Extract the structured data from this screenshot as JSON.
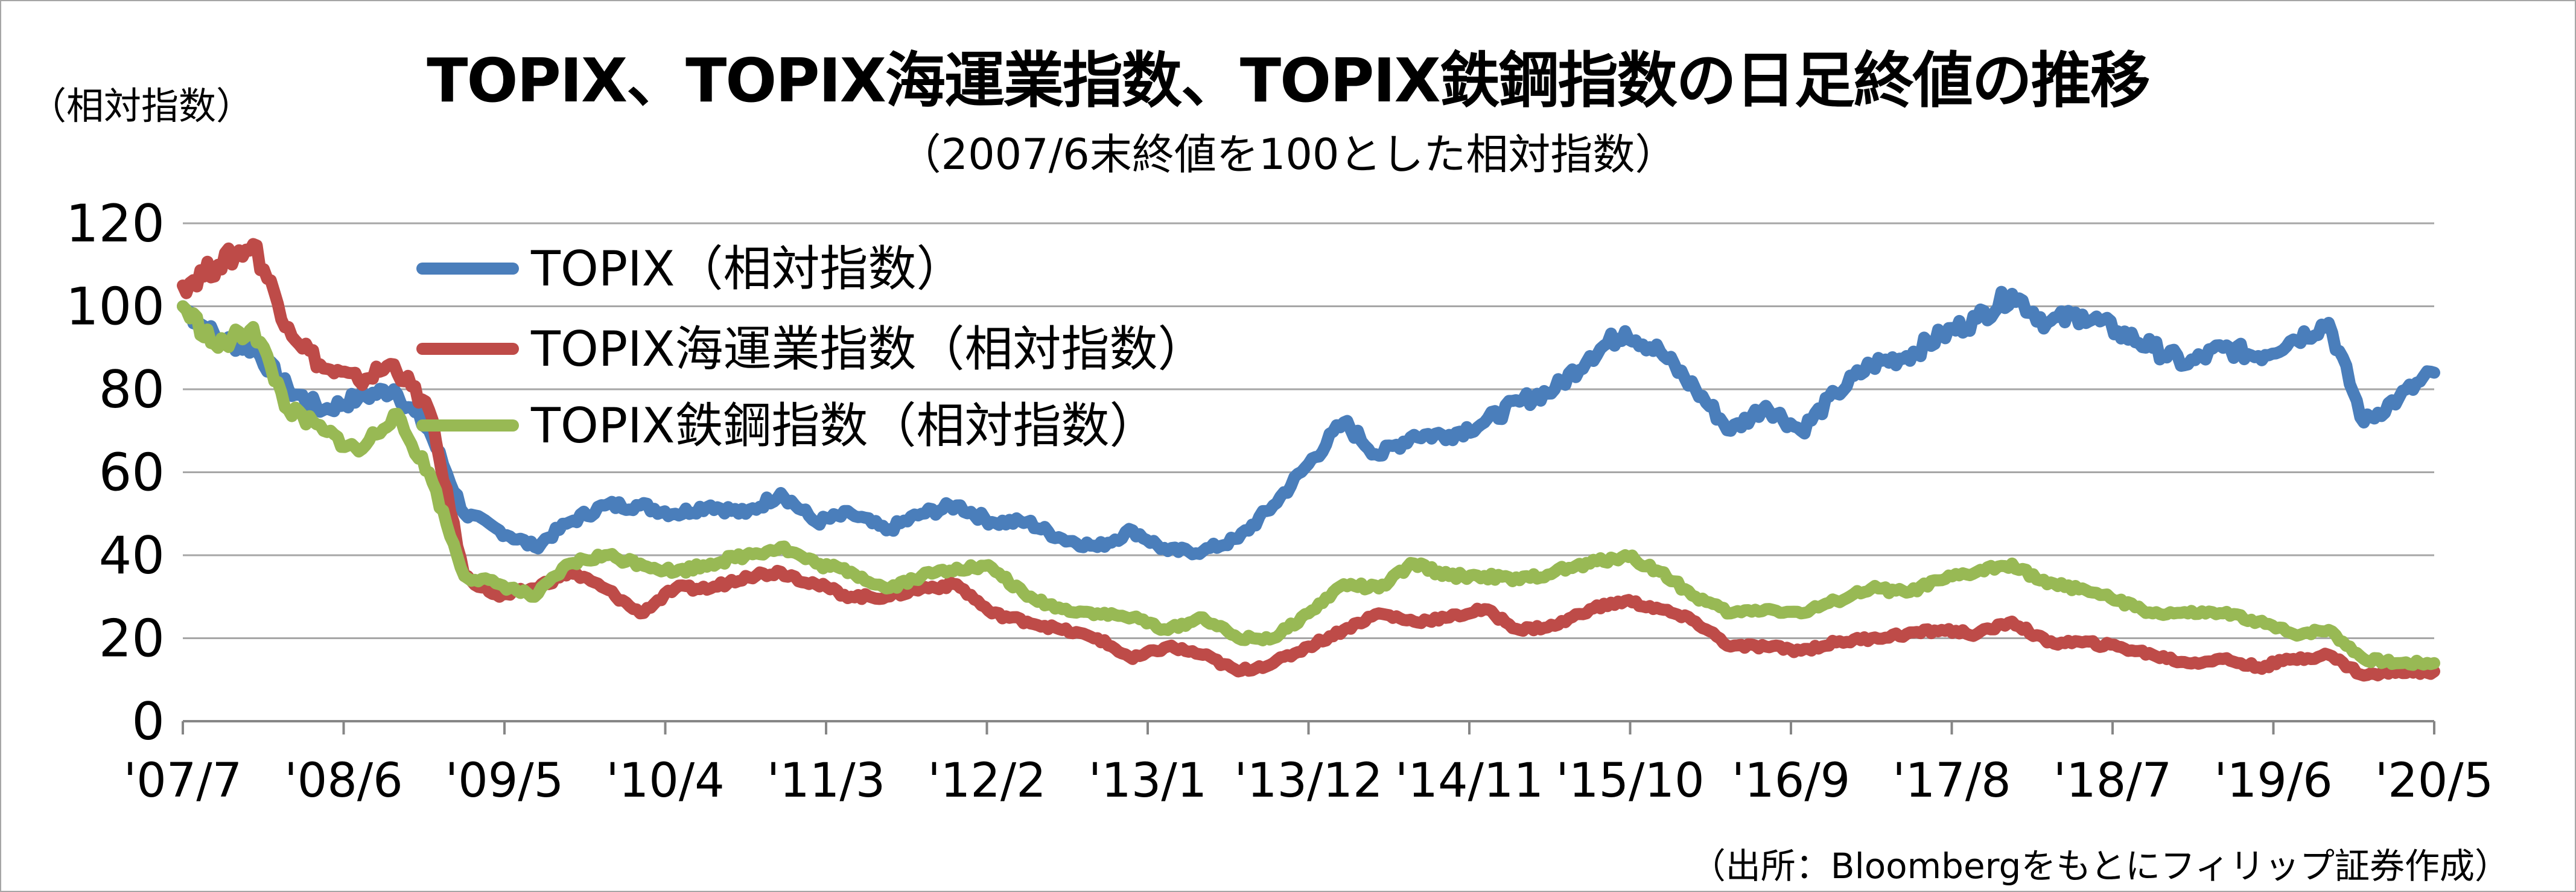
{
  "chart_data": {
    "type": "line",
    "title": "TOPIX、TOPIX海運業指数、TOPIX鉄鋼指数の日足終値の推移",
    "subtitle": "（2007/6末終値を100とした相対指数）",
    "ylabel": "（相対指数）",
    "source": "（出所：Bloombergをもとにフィリップ証券作成）",
    "ylim": [
      0,
      120
    ],
    "yticks": [
      "0",
      "20",
      "40",
      "60",
      "80",
      "100",
      "120"
    ],
    "xticks": [
      "'07/7",
      "'08/6",
      "'09/5",
      "'10/4",
      "'11/3",
      "'12/2",
      "'13/1",
      "'13/12",
      "'14/11",
      "'15/10",
      "'16/9",
      "'17/8",
      "'18/7",
      "'19/6",
      "'20/5"
    ],
    "grid": true,
    "legend_position": "top-left",
    "x": [
      "2007/7",
      "2007/9",
      "2007/11",
      "2008/1",
      "2008/3",
      "2008/5",
      "2008/7",
      "2008/9",
      "2008/10",
      "2008/12",
      "2009/2",
      "2009/4",
      "2009/6",
      "2009/8",
      "2009/10",
      "2009/12",
      "2010/2",
      "2010/4",
      "2010/6",
      "2010/8",
      "2010/10",
      "2010/12",
      "2011/2",
      "2011/3",
      "2011/6",
      "2011/9",
      "2011/12",
      "2012/3",
      "2012/6",
      "2012/9",
      "2012/11",
      "2013/1",
      "2013/3",
      "2013/5",
      "2013/8",
      "2013/12",
      "2014/3",
      "2014/6",
      "2014/9",
      "2014/12",
      "2015/3",
      "2015/6",
      "2015/8",
      "2015/10",
      "2016/2",
      "2016/6",
      "2016/9",
      "2016/11",
      "2017/2",
      "2017/5",
      "2017/8",
      "2017/11",
      "2018/1",
      "2018/4",
      "2018/7",
      "2018/10",
      "2018/12",
      "2019/3",
      "2019/6",
      "2019/9",
      "2019/12",
      "2020/2",
      "2020/3",
      "2020/4",
      "2020/5"
    ],
    "series": [
      {
        "name": "TOPIX（相対指数）",
        "color": "#4a7ebb",
        "values": [
          100,
          92,
          90,
          80,
          75,
          78,
          80,
          70,
          50,
          46,
          42,
          48,
          52,
          52,
          50,
          52,
          50,
          55,
          48,
          50,
          46,
          50,
          52,
          48,
          48,
          44,
          42,
          46,
          41,
          41,
          44,
          52,
          62,
          72,
          64,
          69,
          69,
          72,
          77,
          80,
          88,
          94,
          89,
          80,
          70,
          76,
          70,
          79,
          86,
          88,
          93,
          97,
          103,
          96,
          98,
          94,
          90,
          86,
          90,
          88,
          92,
          96,
          72,
          78,
          84
        ]
      },
      {
        "name": "TOPIX海運業指数（相対指数）",
        "color": "#be4b48",
        "values": [
          105,
          110,
          115,
          95,
          85,
          82,
          86,
          75,
          35,
          30,
          32,
          36,
          32,
          26,
          32,
          32,
          35,
          36,
          33,
          30,
          30,
          32,
          33,
          26,
          24,
          22,
          20,
          15,
          18,
          16,
          12,
          14,
          18,
          22,
          26,
          24,
          25,
          27,
          22,
          23,
          27,
          29,
          27,
          24,
          18,
          18,
          17,
          19,
          20,
          21,
          22,
          21,
          24,
          19,
          19,
          18,
          16,
          14,
          15,
          13,
          15,
          16,
          11,
          12,
          12
        ]
      },
      {
        "name": "TOPIX鉄鋼指数（相対指数）",
        "color": "#98b954",
        "values": [
          100,
          90,
          95,
          75,
          70,
          65,
          74,
          60,
          35,
          33,
          30,
          38,
          40,
          38,
          36,
          38,
          40,
          42,
          38,
          36,
          32,
          35,
          37,
          37,
          30,
          27,
          26,
          25,
          22,
          25,
          20,
          20,
          26,
          33,
          32,
          38,
          35,
          35,
          34,
          36,
          38,
          40,
          36,
          30,
          26,
          27,
          26,
          29,
          32,
          31,
          34,
          36,
          38,
          33,
          32,
          29,
          26,
          26,
          26,
          24,
          21,
          22,
          15,
          14,
          14
        ]
      }
    ]
  }
}
